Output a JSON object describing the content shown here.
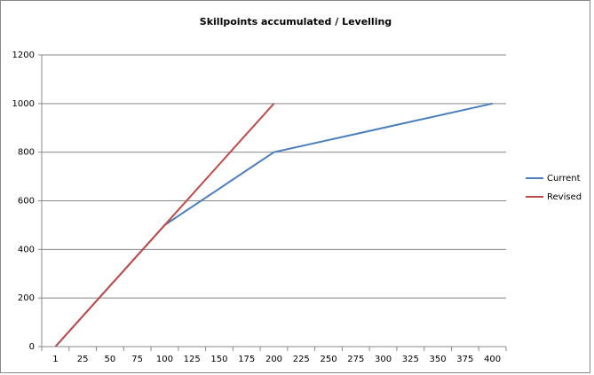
{
  "chart_data": {
    "type": "line",
    "title": "Skillpoints  accumulated  / Levelling",
    "categories": [
      1,
      25,
      50,
      75,
      100,
      125,
      150,
      175,
      200,
      225,
      250,
      275,
      300,
      325,
      350,
      375,
      400
    ],
    "series": [
      {
        "name": "Current",
        "color": "#4a7ebb",
        "values": [
          0,
          125,
          250,
          375,
          500,
          575,
          650,
          725,
          800,
          825,
          850,
          875,
          900,
          925,
          950,
          975,
          1000
        ]
      },
      {
        "name": "Revised",
        "color": "#be4b48",
        "values": [
          0,
          125,
          250,
          375,
          500,
          625,
          750,
          875,
          1000,
          null,
          null,
          null,
          null,
          null,
          null,
          null,
          null
        ]
      }
    ],
    "ylim": [
      0,
      1200
    ],
    "yticks": [
      0,
      200,
      400,
      600,
      800,
      1000,
      1200
    ],
    "grid": true,
    "legend": "right"
  }
}
